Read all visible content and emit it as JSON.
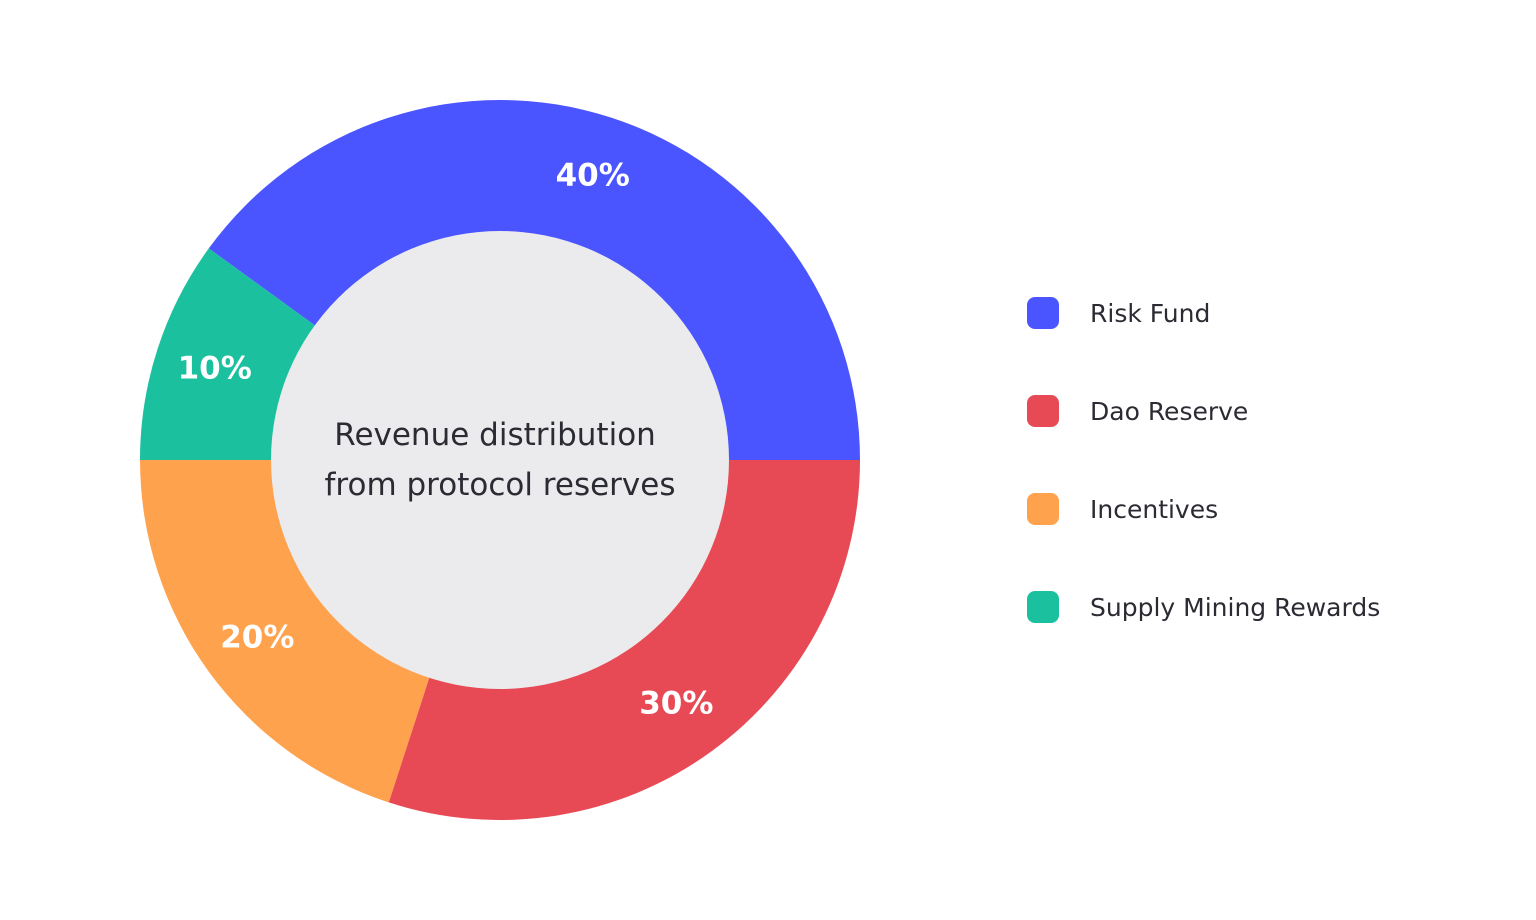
{
  "chart_data": {
    "type": "pie",
    "variant": "donut",
    "title": "Revenue distribution from protocol reserves",
    "title_lines": [
      "Revenue distribution",
      "from protocol reserves"
    ],
    "categories": [
      "Risk Fund",
      "Dao Reserve",
      "Incentives",
      "Supply Mining Rewards"
    ],
    "values": [
      40,
      30,
      20,
      10
    ],
    "labels": [
      "40%",
      "30%",
      "20%",
      "10%"
    ],
    "colors": [
      "#4B55FF",
      "#E84A55",
      "#FFA24E",
      "#1BC19E"
    ],
    "center_fill": "#EBEBED",
    "legend_position": "right"
  },
  "legend": {
    "items": [
      {
        "label": "Risk Fund",
        "color": "#4B55FF"
      },
      {
        "label": "Dao Reserve",
        "color": "#E84A55"
      },
      {
        "label": "Incentives",
        "color": "#FFA24E"
      },
      {
        "label": "Supply Mining Rewards",
        "color": "#1BC19E"
      }
    ]
  }
}
